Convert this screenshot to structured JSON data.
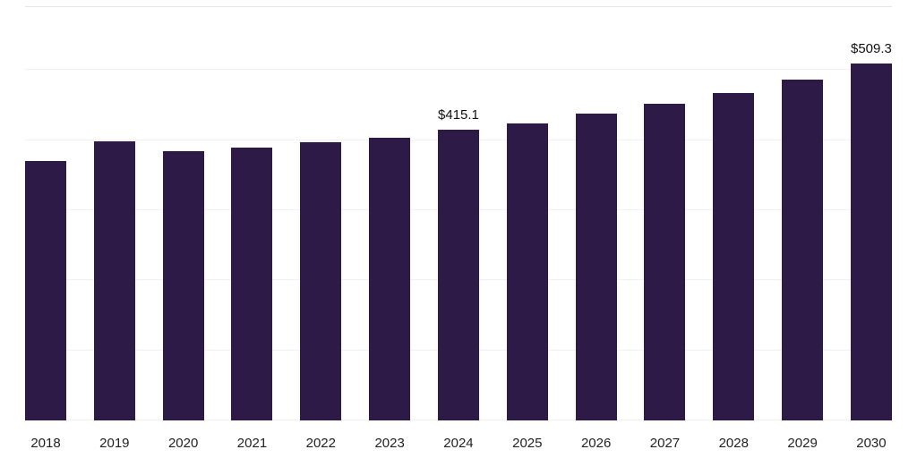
{
  "chart_data": {
    "type": "bar",
    "title": "",
    "xlabel": "",
    "ylabel": "",
    "categories": [
      "2018",
      "2019",
      "2020",
      "2021",
      "2022",
      "2023",
      "2024",
      "2025",
      "2026",
      "2027",
      "2028",
      "2029",
      "2030"
    ],
    "values": [
      370,
      398,
      384,
      389,
      397,
      404,
      415.1,
      424,
      438,
      452,
      468,
      487,
      509.3
    ],
    "data_labels": [
      null,
      null,
      null,
      null,
      null,
      null,
      "$415.1",
      null,
      null,
      null,
      null,
      null,
      "$509.3"
    ],
    "ylim": [
      0,
      590
    ],
    "grid": "horizontal",
    "gridline_interval": 100,
    "legend": "none",
    "colors": {
      "bar": "#2e1a47",
      "data_label_text": "#111111",
      "axis_tick_text": "#222222",
      "gridline": "#f2f2f4",
      "top_border": "#e4e4e9",
      "background": "#ffffff"
    }
  }
}
